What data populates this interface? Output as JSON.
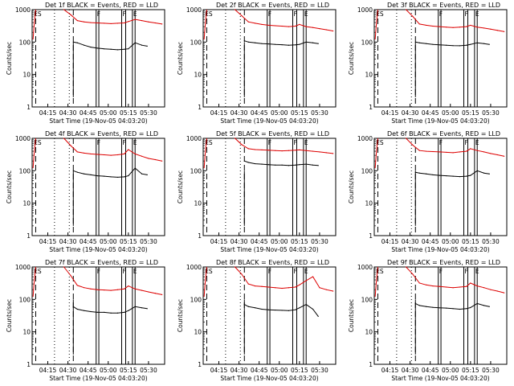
{
  "x_tick_labels": [
    "04:15",
    "04:30",
    "04:45",
    "05:00",
    "05:15",
    "05:30"
  ],
  "y_tick_labels": [
    "1000",
    "100",
    "10",
    "1"
  ],
  "xlabel": "Start Time (19-Nov-05 04:03:20)",
  "ylabel": "Counts/sec",
  "flags": [
    "ES",
    "F",
    "F",
    "E"
  ],
  "colors": {
    "events": "#000000",
    "lld": "#dd0000",
    "axis": "#000000"
  },
  "chart_data": [
    {
      "type": "line",
      "title": "Det 1f BLACK = Events, RED = LLD",
      "xlabel": "Start Time (19-Nov-05 04:03:20)",
      "ylabel": "Counts/sec",
      "yscale": "log",
      "ylim": [
        1,
        1000
      ],
      "xlim": [
        "04:03:20",
        "05:42:00"
      ],
      "series": [
        {
          "name": "LLD",
          "color": "#dd0000",
          "x": [
            "04:27",
            "04:32",
            "04:37",
            "04:42",
            "04:47",
            "04:52",
            "04:57",
            "05:02",
            "05:07",
            "05:12",
            "05:15",
            "05:20",
            "05:25",
            "05:30",
            "05:35",
            "05:40"
          ],
          "y": [
            1000,
            700,
            460,
            420,
            400,
            390,
            380,
            370,
            380,
            390,
            430,
            500,
            460,
            420,
            390,
            360
          ]
        },
        {
          "name": "Events",
          "color": "#000000",
          "x": [
            "04:34",
            "04:37",
            "04:42",
            "04:47",
            "04:52",
            "04:57",
            "05:02",
            "05:07",
            "05:12",
            "05:15",
            "05:20",
            "05:25",
            "05:29"
          ],
          "y": [
            100,
            95,
            80,
            70,
            65,
            62,
            60,
            58,
            60,
            62,
            95,
            80,
            75
          ]
        }
      ]
    },
    {
      "type": "line",
      "title": "Det 2f BLACK = Events, RED = LLD",
      "xlabel": "Start Time (19-Nov-05 04:03:20)",
      "ylabel": "Counts/sec",
      "yscale": "log",
      "ylim": [
        1,
        1000
      ],
      "xlim": [
        "04:03:20",
        "05:42:00"
      ],
      "series": [
        {
          "name": "LLD",
          "color": "#dd0000",
          "x": [
            "04:27",
            "04:32",
            "04:37",
            "04:42",
            "04:47",
            "04:52",
            "04:57",
            "05:02",
            "05:07",
            "05:12",
            "05:15",
            "05:20",
            "05:25",
            "05:30",
            "05:35",
            "05:40"
          ],
          "y": [
            1000,
            650,
            420,
            380,
            350,
            330,
            320,
            310,
            300,
            310,
            350,
            300,
            280,
            260,
            240,
            220
          ]
        },
        {
          "name": "Events",
          "color": "#000000",
          "x": [
            "04:34",
            "04:37",
            "04:42",
            "04:47",
            "04:52",
            "04:57",
            "05:02",
            "05:07",
            "05:12",
            "05:15",
            "05:20",
            "05:25",
            "05:29"
          ],
          "y": [
            110,
            100,
            95,
            90,
            88,
            85,
            83,
            80,
            82,
            85,
            100,
            95,
            90
          ]
        }
      ]
    },
    {
      "type": "line",
      "title": "Det 3f BLACK = Events, RED = LLD",
      "xlabel": "Start Time (19-Nov-05 04:03:20)",
      "ylabel": "Counts/sec",
      "yscale": "log",
      "ylim": [
        1,
        1000
      ],
      "xlim": [
        "04:03:20",
        "05:42:00"
      ],
      "series": [
        {
          "name": "LLD",
          "color": "#dd0000",
          "x": [
            "04:27",
            "04:32",
            "04:37",
            "04:42",
            "04:47",
            "04:52",
            "04:57",
            "05:02",
            "05:07",
            "05:12",
            "05:15",
            "05:20",
            "05:25",
            "05:30",
            "05:35",
            "05:40"
          ],
          "y": [
            1000,
            620,
            360,
            330,
            310,
            300,
            290,
            280,
            290,
            300,
            330,
            290,
            270,
            250,
            230,
            210
          ]
        },
        {
          "name": "Events",
          "color": "#000000",
          "x": [
            "04:34",
            "04:37",
            "04:42",
            "04:47",
            "04:52",
            "04:57",
            "05:02",
            "05:07",
            "05:12",
            "05:15",
            "05:20",
            "05:25",
            "05:29"
          ],
          "y": [
            100,
            95,
            90,
            85,
            82,
            80,
            78,
            77,
            80,
            85,
            95,
            90,
            85
          ]
        }
      ]
    },
    {
      "type": "line",
      "title": "Det 4f BLACK = Events, RED = LLD",
      "xlabel": "Start Time (19-Nov-05 04:03:20)",
      "ylabel": "Counts/sec",
      "yscale": "log",
      "ylim": [
        1,
        1000
      ],
      "xlim": [
        "04:03:20",
        "05:42:00"
      ],
      "series": [
        {
          "name": "LLD",
          "color": "#dd0000",
          "x": [
            "04:27",
            "04:32",
            "04:37",
            "04:42",
            "04:47",
            "04:52",
            "04:57",
            "05:02",
            "05:07",
            "05:12",
            "05:15",
            "05:20",
            "05:25",
            "05:30",
            "05:35",
            "05:40"
          ],
          "y": [
            1000,
            600,
            380,
            350,
            330,
            320,
            310,
            300,
            310,
            330,
            450,
            330,
            280,
            240,
            220,
            200
          ]
        },
        {
          "name": "Events",
          "color": "#000000",
          "x": [
            "04:34",
            "04:37",
            "04:42",
            "04:47",
            "04:52",
            "04:57",
            "05:02",
            "05:07",
            "05:12",
            "05:15",
            "05:20",
            "05:25",
            "05:29"
          ],
          "y": [
            100,
            90,
            80,
            75,
            70,
            68,
            65,
            63,
            65,
            70,
            120,
            80,
            75
          ]
        }
      ]
    },
    {
      "type": "line",
      "title": "Det 5f BLACK = Events, RED = LLD",
      "xlabel": "Start Time (19-Nov-05 04:03:20)",
      "ylabel": "Counts/sec",
      "yscale": "log",
      "ylim": [
        1,
        1000
      ],
      "xlim": [
        "04:03:20",
        "05:42:00"
      ],
      "series": [
        {
          "name": "LLD",
          "color": "#dd0000",
          "x": [
            "04:27",
            "04:32",
            "04:37",
            "04:42",
            "04:47",
            "04:52",
            "04:57",
            "05:02",
            "05:07",
            "05:12",
            "05:15",
            "05:20",
            "05:25",
            "05:30",
            "05:35",
            "05:40"
          ],
          "y": [
            1000,
            640,
            480,
            450,
            440,
            430,
            420,
            410,
            420,
            430,
            440,
            420,
            400,
            380,
            360,
            340
          ]
        },
        {
          "name": "Events",
          "color": "#000000",
          "x": [
            "04:34",
            "04:37",
            "04:42",
            "04:47",
            "04:52",
            "04:57",
            "05:02",
            "05:07",
            "05:12",
            "05:15",
            "05:20",
            "05:25",
            "05:29"
          ],
          "y": [
            200,
            180,
            165,
            160,
            155,
            150,
            150,
            145,
            150,
            155,
            160,
            150,
            145
          ]
        }
      ]
    },
    {
      "type": "line",
      "title": "Det 6f BLACK = Events, RED = LLD",
      "xlabel": "Start Time (19-Nov-05 04:03:20)",
      "ylabel": "Counts/sec",
      "yscale": "log",
      "ylim": [
        1,
        1000
      ],
      "xlim": [
        "04:03:20",
        "05:42:00"
      ],
      "series": [
        {
          "name": "LLD",
          "color": "#dd0000",
          "x": [
            "04:27",
            "04:32",
            "04:37",
            "04:42",
            "04:47",
            "04:52",
            "04:57",
            "05:02",
            "05:07",
            "05:12",
            "05:15",
            "05:20",
            "05:25",
            "05:30",
            "05:35",
            "05:40"
          ],
          "y": [
            1000,
            620,
            420,
            400,
            390,
            380,
            370,
            360,
            380,
            400,
            480,
            420,
            380,
            340,
            310,
            280
          ]
        },
        {
          "name": "Events",
          "color": "#000000",
          "x": [
            "04:34",
            "04:37",
            "04:42",
            "04:47",
            "04:52",
            "04:57",
            "05:02",
            "05:07",
            "05:12",
            "05:15",
            "05:20",
            "05:25",
            "05:29"
          ],
          "y": [
            90,
            85,
            80,
            75,
            72,
            70,
            68,
            66,
            68,
            72,
            100,
            85,
            80
          ]
        }
      ]
    },
    {
      "type": "line",
      "title": "Det 7f BLACK = Events, RED = LLD",
      "xlabel": "Start Time (19-Nov-05 04:03:20)",
      "ylabel": "Counts/sec",
      "yscale": "log",
      "ylim": [
        1,
        1000
      ],
      "xlim": [
        "04:03:20",
        "05:42:00"
      ],
      "series": [
        {
          "name": "LLD",
          "color": "#dd0000",
          "x": [
            "04:27",
            "04:32",
            "04:37",
            "04:42",
            "04:47",
            "04:52",
            "04:57",
            "05:02",
            "05:07",
            "05:12",
            "05:15",
            "05:20",
            "05:25",
            "05:30",
            "05:35",
            "05:40"
          ],
          "y": [
            1000,
            550,
            270,
            230,
            210,
            200,
            195,
            190,
            200,
            210,
            260,
            210,
            190,
            170,
            155,
            140
          ]
        },
        {
          "name": "Events",
          "color": "#000000",
          "x": [
            "04:34",
            "04:37",
            "04:42",
            "04:47",
            "04:52",
            "04:57",
            "05:02",
            "05:07",
            "05:12",
            "05:15",
            "05:20",
            "05:25",
            "05:29"
          ],
          "y": [
            60,
            50,
            45,
            42,
            40,
            40,
            38,
            38,
            40,
            45,
            60,
            55,
            52
          ]
        }
      ]
    },
    {
      "type": "line",
      "title": "Det 8f BLACK = Events, RED = LLD",
      "xlabel": "Start Time (19-Nov-05 04:03:20)",
      "ylabel": "Counts/sec",
      "yscale": "log",
      "ylim": [
        1,
        1000
      ],
      "xlim": [
        "04:03:20",
        "05:42:00"
      ],
      "series": [
        {
          "name": "LLD",
          "color": "#dd0000",
          "x": [
            "04:27",
            "04:32",
            "04:37",
            "04:42",
            "04:47",
            "04:52",
            "04:57",
            "05:02",
            "05:07",
            "05:12",
            "05:15",
            "05:20",
            "05:25",
            "05:30",
            "05:35",
            "05:40"
          ],
          "y": [
            1000,
            600,
            300,
            260,
            250,
            240,
            230,
            220,
            230,
            240,
            280,
            380,
            500,
            230,
            200,
            180
          ]
        },
        {
          "name": "Events",
          "color": "#000000",
          "x": [
            "04:34",
            "04:37",
            "04:42",
            "04:47",
            "04:52",
            "04:57",
            "05:02",
            "05:07",
            "05:12",
            "05:15",
            "05:20",
            "05:25",
            "05:29"
          ],
          "y": [
            70,
            60,
            55,
            50,
            48,
            47,
            46,
            45,
            48,
            55,
            70,
            50,
            30
          ]
        }
      ]
    },
    {
      "type": "line",
      "title": "Det 9f BLACK = Events, RED = LLD",
      "xlabel": "Start Time (19-Nov-05 04:03:20)",
      "ylabel": "Counts/sec",
      "yscale": "log",
      "ylim": [
        1,
        1000
      ],
      "xlim": [
        "04:03:20",
        "05:42:00"
      ],
      "series": [
        {
          "name": "LLD",
          "color": "#dd0000",
          "x": [
            "04:27",
            "04:32",
            "04:37",
            "04:42",
            "04:47",
            "04:52",
            "04:57",
            "05:02",
            "05:07",
            "05:12",
            "05:15",
            "05:20",
            "05:25",
            "05:30",
            "05:35",
            "05:40"
          ],
          "y": [
            1000,
            600,
            320,
            280,
            260,
            250,
            240,
            230,
            240,
            250,
            320,
            260,
            230,
            200,
            180,
            160
          ]
        },
        {
          "name": "Events",
          "color": "#000000",
          "x": [
            "04:34",
            "04:37",
            "04:42",
            "04:47",
            "04:52",
            "04:57",
            "05:02",
            "05:07",
            "05:12",
            "05:15",
            "05:20",
            "05:25",
            "05:29"
          ],
          "y": [
            75,
            65,
            60,
            57,
            55,
            54,
            52,
            50,
            52,
            56,
            75,
            65,
            60
          ]
        }
      ]
    }
  ]
}
